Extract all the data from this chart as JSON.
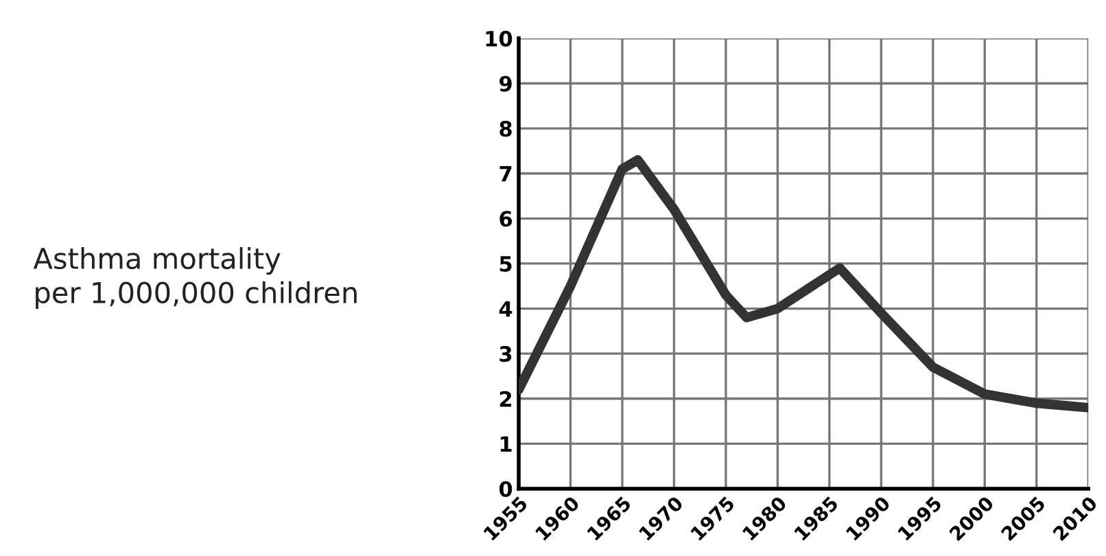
{
  "chart_data": {
    "type": "line",
    "ylabel": "Asthma mortality\nper 1,000,000 children",
    "series": [
      {
        "color": "#333333",
        "x": [
          1955,
          1960,
          1965,
          1966.5,
          1970,
          1975,
          1977,
          1980,
          1986,
          1990,
          1995,
          2000,
          2005,
          2010
        ],
        "values": [
          2.2,
          4.5,
          7.1,
          7.3,
          6.2,
          4.3,
          3.8,
          4.0,
          4.9,
          3.9,
          2.7,
          2.1,
          1.9,
          1.8
        ]
      }
    ],
    "xlim": [
      1955,
      2010
    ],
    "xticks": [
      1955,
      1960,
      1965,
      1970,
      1975,
      1980,
      1985,
      1990,
      1995,
      2000,
      2005,
      2010
    ],
    "ylim": [
      0,
      10
    ],
    "yticks": [
      0,
      1,
      2,
      3,
      4,
      5,
      6,
      7,
      8,
      9,
      10
    ],
    "grid": true,
    "marker": "none",
    "line_style": "solid"
  }
}
